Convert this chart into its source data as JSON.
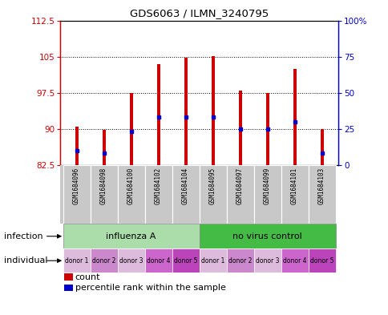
{
  "title": "GDS6063 / ILMN_3240795",
  "samples": [
    "GSM1684096",
    "GSM1684098",
    "GSM1684100",
    "GSM1684102",
    "GSM1684104",
    "GSM1684095",
    "GSM1684097",
    "GSM1684099",
    "GSM1684101",
    "GSM1684103"
  ],
  "bar_heights": [
    90.5,
    89.8,
    97.5,
    103.5,
    104.8,
    105.2,
    98.0,
    97.5,
    102.5,
    90.0
  ],
  "blue_dot_values": [
    85.5,
    85.0,
    89.5,
    92.5,
    92.5,
    92.5,
    90.0,
    90.0,
    91.5,
    85.0
  ],
  "bar_base": 82.5,
  "ylim_left": [
    82.5,
    112.5
  ],
  "ylim_right": [
    0,
    100
  ],
  "yticks_left": [
    82.5,
    90.0,
    97.5,
    105.0,
    112.5
  ],
  "yticks_right": [
    0,
    25,
    50,
    75,
    100
  ],
  "ytick_labels_left": [
    "82.5",
    "90",
    "97.5",
    "105",
    "112.5"
  ],
  "ytick_labels_right": [
    "0",
    "25",
    "50",
    "75",
    "100%"
  ],
  "bar_color": "#CC0000",
  "dot_color": "#0000CC",
  "infection_groups": [
    {
      "label": "influenza A",
      "start": 0,
      "end": 5,
      "color": "#AADDAA"
    },
    {
      "label": "no virus control",
      "start": 5,
      "end": 10,
      "color": "#44BB44"
    }
  ],
  "individual_labels": [
    "donor 1",
    "donor 2",
    "donor 3",
    "donor 4",
    "donor 5",
    "donor 1",
    "donor 2",
    "donor 3",
    "donor 4",
    "donor 5"
  ],
  "individual_colors": [
    "#DDAADD",
    "#DD88DD",
    "#DDAADD",
    "#DD66DD",
    "#DD44DD",
    "#DDAADD",
    "#DD88DD",
    "#DDAADD",
    "#DD66DD",
    "#DD44DD"
  ],
  "infection_label": "infection",
  "individual_label": "individual",
  "legend_count": "count",
  "legend_percentile": "percentile rank within the sample",
  "background_color": "#FFFFFF",
  "sample_bg": "#C8C8C8",
  "bar_width": 0.12
}
